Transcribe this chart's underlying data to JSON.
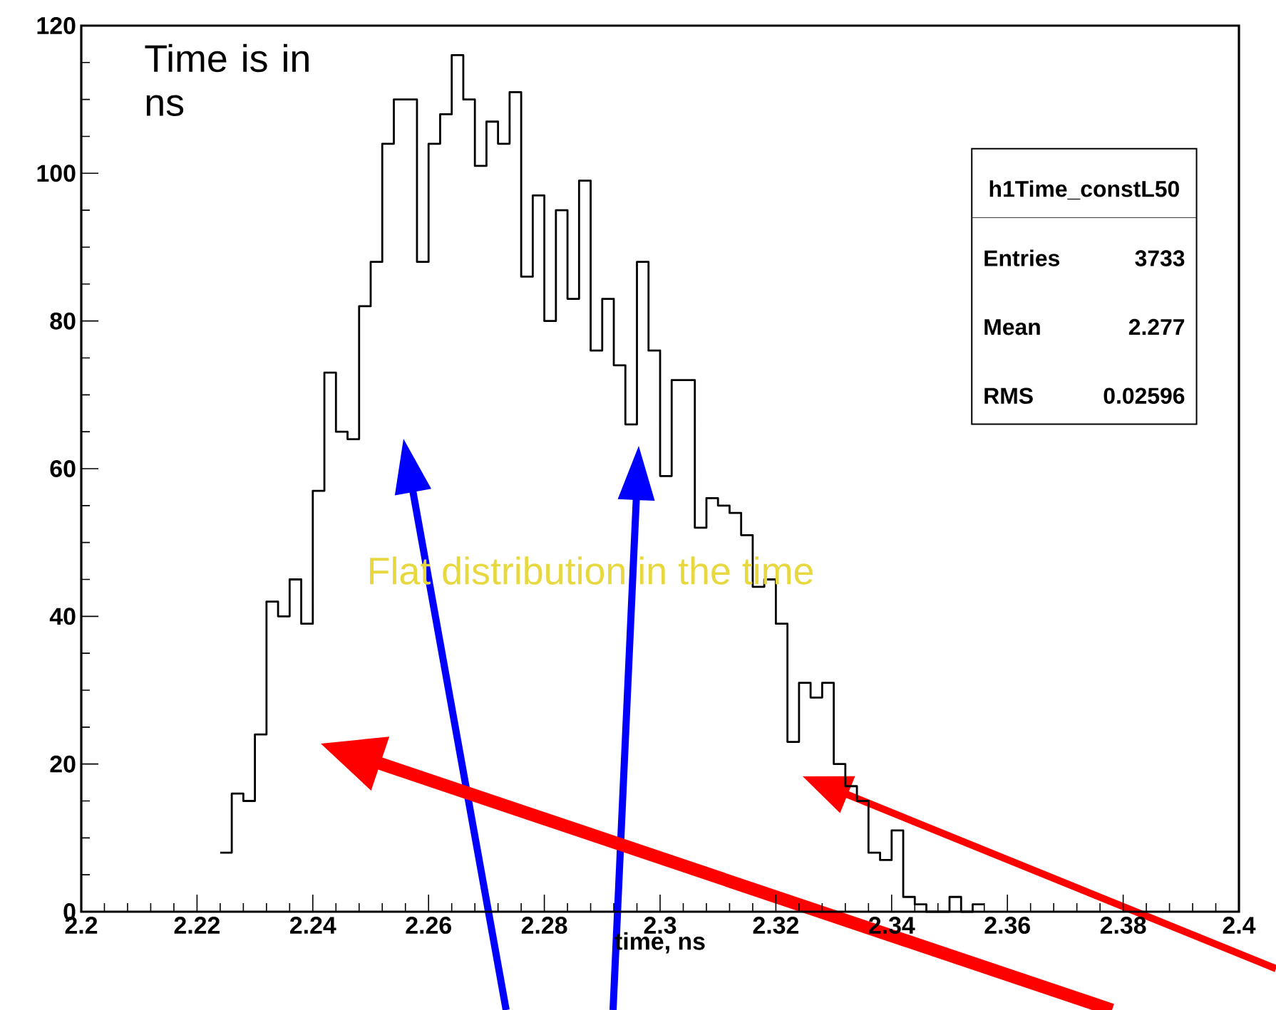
{
  "chart_data": {
    "type": "histogram",
    "xlabel": "time, ns",
    "bins": [
      2.224,
      2.226,
      2.228,
      2.23,
      2.232,
      2.234,
      2.236,
      2.238,
      2.24,
      2.242,
      2.244,
      2.246,
      2.248,
      2.25,
      2.252,
      2.254,
      2.256,
      2.258,
      2.26,
      2.262,
      2.264,
      2.266,
      2.268,
      2.27,
      2.272,
      2.274,
      2.276,
      2.278,
      2.28,
      2.282,
      2.284,
      2.286,
      2.288,
      2.29,
      2.292,
      2.294,
      2.296,
      2.298,
      2.3,
      2.302,
      2.304,
      2.306,
      2.308,
      2.31,
      2.312,
      2.314,
      2.316,
      2.318,
      2.32,
      2.322,
      2.324,
      2.326,
      2.328,
      2.33,
      2.332,
      2.334,
      2.336,
      2.338,
      2.34,
      2.342,
      2.344,
      2.346,
      2.348,
      2.35,
      2.352,
      2.354,
      2.356
    ],
    "values": [
      8,
      16,
      15,
      24,
      42,
      40,
      45,
      39,
      57,
      73,
      65,
      64,
      82,
      88,
      104,
      110,
      110,
      88,
      104,
      108,
      116,
      110,
      101,
      107,
      104,
      111,
      86,
      97,
      80,
      95,
      83,
      99,
      76,
      83,
      74,
      66,
      88,
      76,
      59,
      72,
      72,
      52,
      56,
      55,
      54,
      51,
      44,
      45,
      39,
      23,
      31,
      29,
      31,
      20,
      17,
      15,
      8,
      7,
      11,
      2,
      1,
      0,
      0,
      2,
      0,
      1
    ],
    "color": "#000000",
    "xlim": [
      2.2,
      2.4
    ],
    "xticks": [
      2.2,
      2.22,
      2.24,
      2.26,
      2.28,
      2.3,
      2.32,
      2.34,
      2.36,
      2.38,
      2.4
    ],
    "ylim": [
      0,
      120
    ],
    "yticks": [
      0,
      20,
      40,
      60,
      80,
      100,
      120
    ],
    "annotations": [
      "Time is in ns",
      "Flat distribution in the time",
      "h1Time_constL50",
      "Entries",
      "3733",
      "Mean",
      "2.277",
      "RMS",
      "0.02596"
    ]
  }
}
